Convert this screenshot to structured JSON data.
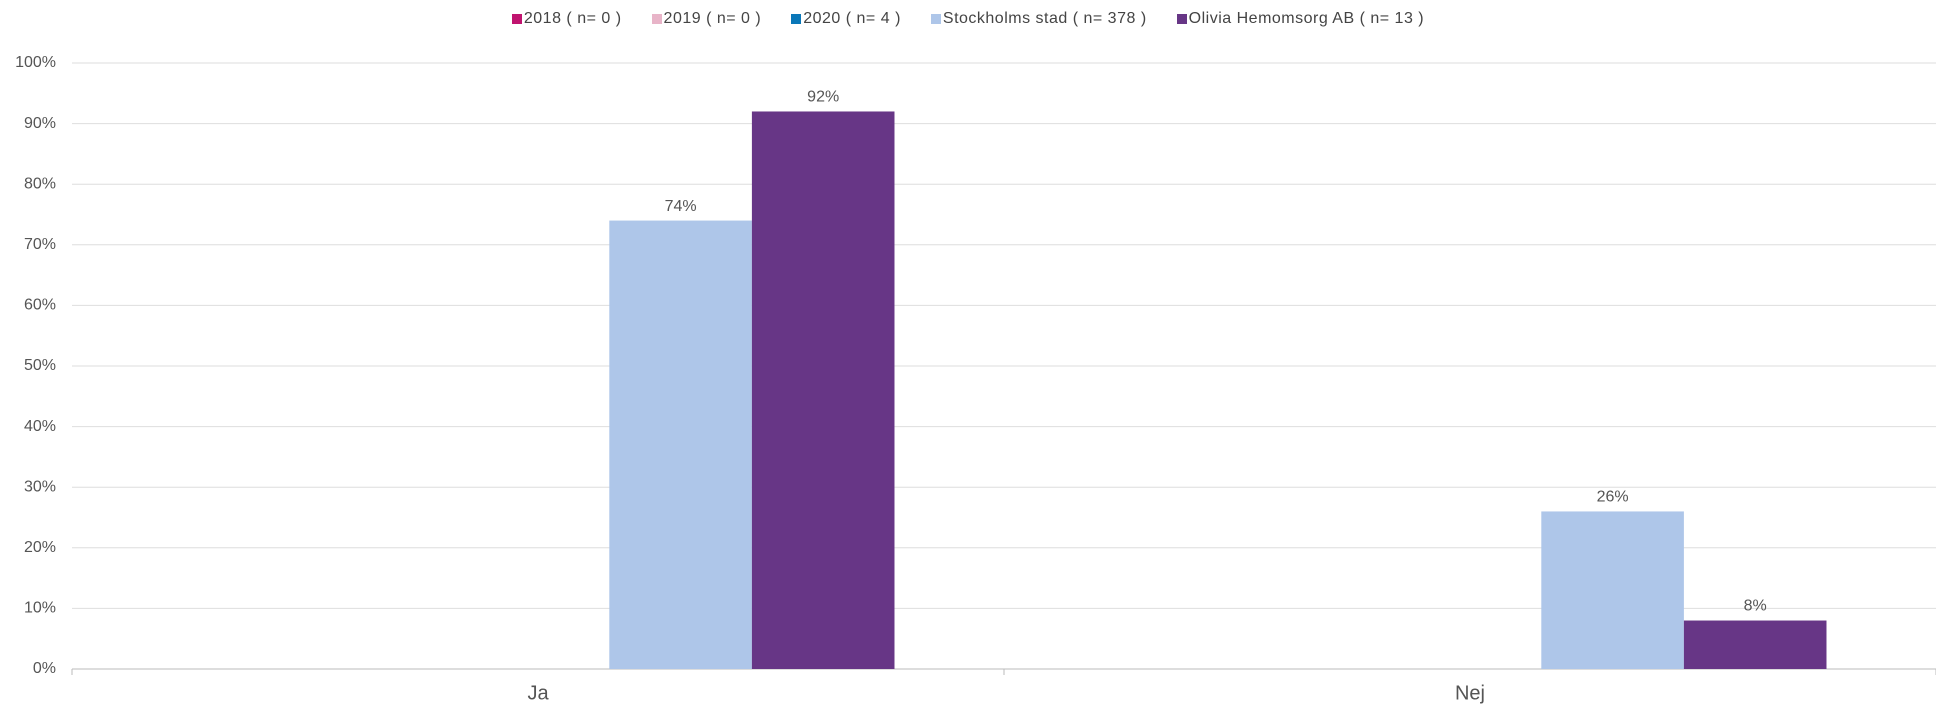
{
  "chart_data": {
    "type": "bar",
    "categories": [
      "Ja",
      "Nej"
    ],
    "series": [
      {
        "name": "2018 ( n= 0 )",
        "color": "#c0136f",
        "values": [
          null,
          null
        ],
        "value_labels": [
          null,
          null
        ]
      },
      {
        "name": "2019 ( n= 0 )",
        "color": "#e8b4c8",
        "values": [
          null,
          null
        ],
        "value_labels": [
          null,
          null
        ]
      },
      {
        "name": "2020 ( n= 4 )",
        "color": "#0a77b8",
        "values": [
          null,
          null
        ],
        "value_labels": [
          null,
          null
        ]
      },
      {
        "name": "Stockholms stad ( n= 378 )",
        "color": "#aec6e9",
        "values": [
          74,
          26
        ],
        "value_labels": [
          "74%",
          "26%"
        ]
      },
      {
        "name": "Olivia Hemomsorg AB ( n= 13 )",
        "color": "#673686",
        "values": [
          92,
          8
        ],
        "value_labels": [
          "92%",
          "8%"
        ]
      }
    ],
    "ylim": [
      0,
      100
    ],
    "yticks": [
      {
        "value": 0,
        "label": "0%"
      },
      {
        "value": 10,
        "label": "10%"
      },
      {
        "value": 20,
        "label": "20%"
      },
      {
        "value": 30,
        "label": "30%"
      },
      {
        "value": 40,
        "label": "40%"
      },
      {
        "value": 50,
        "label": "50%"
      },
      {
        "value": 60,
        "label": "60%"
      },
      {
        "value": 70,
        "label": "70%"
      },
      {
        "value": 80,
        "label": "80%"
      },
      {
        "value": 90,
        "label": "90%"
      },
      {
        "value": 100,
        "label": "100%"
      }
    ],
    "grid": true,
    "legend": "top"
  }
}
